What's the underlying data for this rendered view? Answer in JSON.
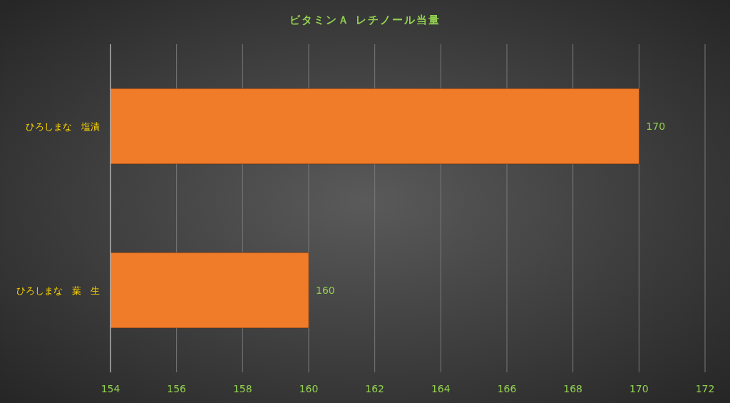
{
  "chart_data": {
    "type": "bar",
    "orientation": "horizontal",
    "title": "ビタミンＡ レチノール当量",
    "categories": [
      "ひろしまな　塩漬",
      "ひろしまな　葉　生"
    ],
    "values": [
      170,
      160
    ],
    "color": "#f07b28",
    "xlim": [
      154,
      172
    ],
    "xticks": [
      154,
      156,
      158,
      160,
      162,
      164,
      166,
      168,
      170,
      172
    ],
    "grid": "x",
    "data_labels": true
  }
}
